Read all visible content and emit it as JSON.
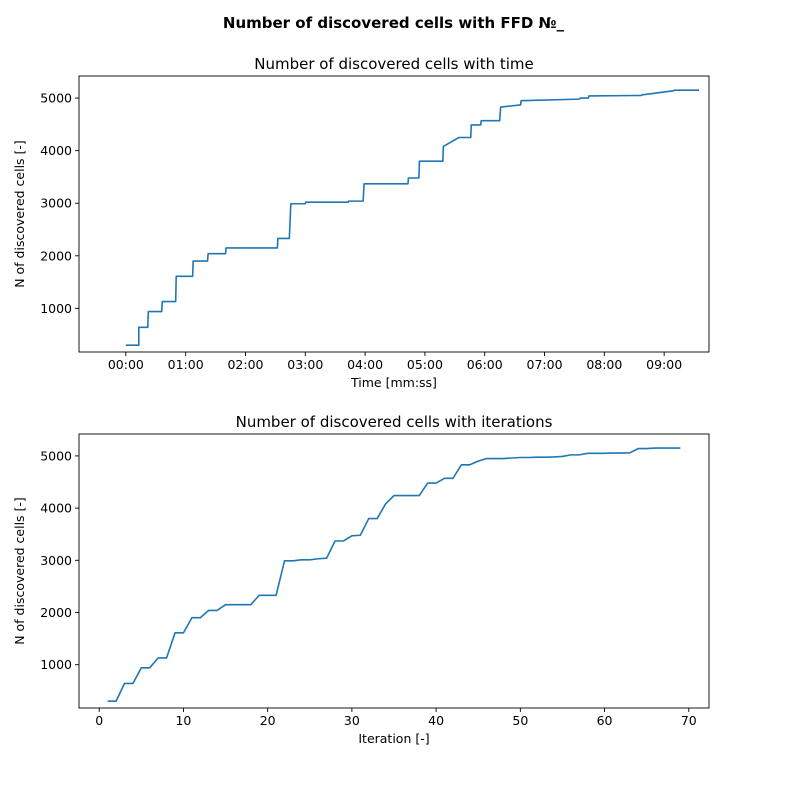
{
  "figure": {
    "suptitle": "Number of discovered cells with FFD №_"
  },
  "chart_data": [
    {
      "type": "line",
      "title": "Number of discovered cells with time",
      "xlabel": "Time [mm:ss]",
      "ylabel": "N of discovered cells [-]",
      "xlim": [
        -47,
        585
      ],
      "ylim": [
        170,
        5420
      ],
      "xticks": [
        0,
        60,
        120,
        180,
        240,
        300,
        360,
        420,
        480,
        540
      ],
      "xtick_labels": [
        "00:00",
        "01:00",
        "02:00",
        "03:00",
        "04:00",
        "05:00",
        "06:00",
        "07:00",
        "08:00",
        "09:00"
      ],
      "yticks": [
        1000,
        2000,
        3000,
        4000,
        5000
      ],
      "ytick_labels": [
        "1000",
        "2000",
        "3000",
        "4000",
        "5000"
      ],
      "color": "#1f77b4",
      "grid": false,
      "series": [
        {
          "x": [
            0,
            13,
            13,
            13.5,
            22,
            22.5,
            36,
            36.5,
            50,
            50.5,
            67,
            67.5,
            82,
            82.5,
            100,
            100.5,
            152,
            152.5,
            164,
            165.5,
            180,
            180.5,
            223,
            223.5,
            238,
            239,
            283,
            283.5,
            294,
            294.5,
            318,
            318.5,
            334,
            334.5,
            346,
            346.5,
            356,
            356.5,
            375,
            376,
            396,
            396.5,
            455,
            456,
            464,
            464.5,
            517,
            517.5,
            550,
            550.5,
            575
          ],
          "y": [
            300,
            300,
            640,
            640,
            640,
            940,
            940,
            1130,
            1130,
            1610,
            1610,
            1900,
            1900,
            2040,
            2040,
            2150,
            2150,
            2330,
            2330,
            2990,
            2990,
            3020,
            3020,
            3040,
            3040,
            3370,
            3370,
            3480,
            3480,
            3800,
            3800,
            4080,
            4250,
            4250,
            4250,
            4490,
            4490,
            4570,
            4570,
            4830,
            4870,
            4950,
            4980,
            5000,
            5000,
            5040,
            5050,
            5060,
            5140,
            5150,
            5150
          ]
        }
      ]
    },
    {
      "type": "line",
      "title": "Number of discovered cells with iterations",
      "xlabel": "Iteration [-]",
      "ylabel": "N of discovered cells [-]",
      "xlim": [
        -2.4,
        72.4
      ],
      "ylim": [
        170,
        5420
      ],
      "xticks": [
        0,
        10,
        20,
        30,
        40,
        50,
        60,
        70
      ],
      "xtick_labels": [
        "0",
        "10",
        "20",
        "30",
        "40",
        "50",
        "60",
        "70"
      ],
      "yticks": [
        1000,
        2000,
        3000,
        4000,
        5000
      ],
      "ytick_labels": [
        "1000",
        "2000",
        "3000",
        "4000",
        "5000"
      ],
      "color": "#1f77b4",
      "grid": false,
      "series": [
        {
          "x": [
            1,
            2,
            3,
            4,
            5,
            6,
            7,
            8,
            9,
            10,
            11,
            12,
            13,
            14,
            15,
            16,
            17,
            18,
            19,
            20,
            21,
            22,
            23,
            24,
            25,
            26,
            27,
            28,
            29,
            30,
            31,
            32,
            33,
            34,
            35,
            36,
            37,
            38,
            39,
            40,
            41,
            42,
            43,
            44,
            45,
            46,
            47,
            48,
            49,
            50,
            51,
            52,
            53,
            54,
            55,
            56,
            57,
            58,
            59,
            60,
            61,
            62,
            63,
            64,
            65,
            66,
            67,
            68,
            69
          ],
          "y": [
            300,
            300,
            640,
            640,
            940,
            940,
            1130,
            1130,
            1610,
            1610,
            1900,
            1900,
            2040,
            2040,
            2150,
            2150,
            2150,
            2150,
            2330,
            2330,
            2330,
            2990,
            2990,
            3010,
            3010,
            3030,
            3040,
            3370,
            3370,
            3470,
            3480,
            3800,
            3800,
            4080,
            4240,
            4240,
            4240,
            4240,
            4480,
            4480,
            4570,
            4570,
            4830,
            4830,
            4900,
            4950,
            4950,
            4950,
            4960,
            4970,
            4970,
            4975,
            4975,
            4980,
            4990,
            5020,
            5020,
            5050,
            5050,
            5050,
            5055,
            5055,
            5060,
            5140,
            5140,
            5150,
            5150,
            5150,
            5150
          ]
        }
      ]
    }
  ]
}
